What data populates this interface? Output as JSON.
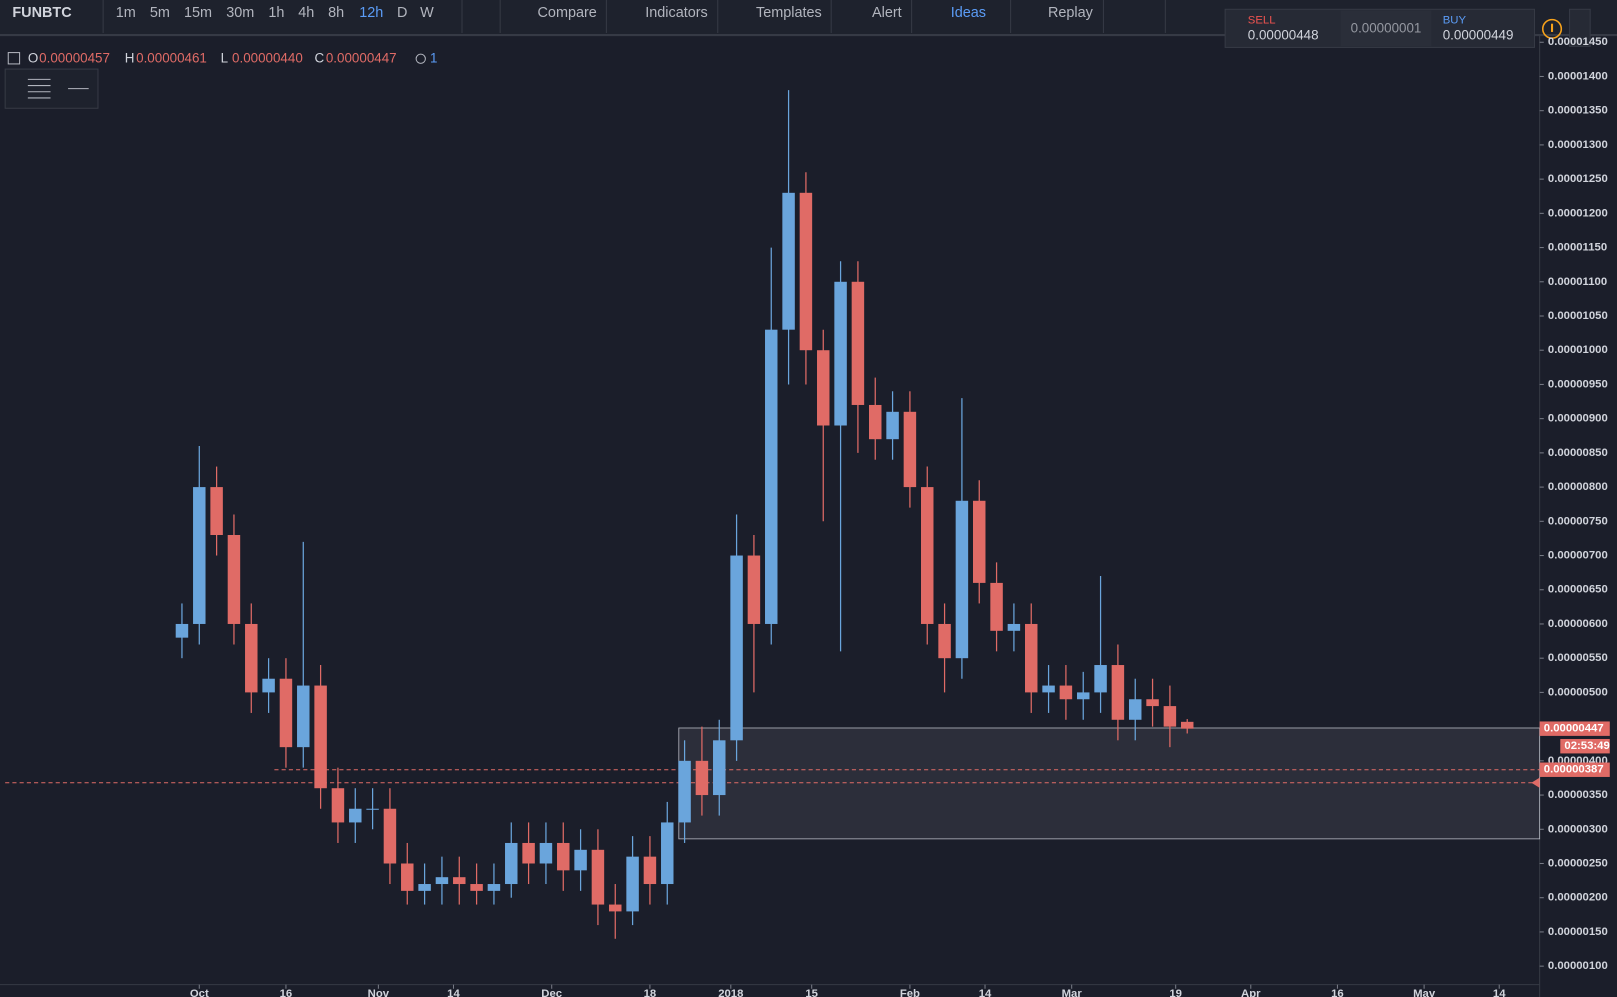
{
  "toolbar": {
    "symbol": "FUNBTC",
    "intervals": [
      "1m",
      "5m",
      "15m",
      "30m",
      "1h",
      "4h",
      "8h",
      "12h",
      "D",
      "W"
    ],
    "buttons": [
      "Compare",
      "Indicators",
      "Templates",
      "Alert",
      "Ideas",
      "Replay"
    ]
  },
  "trade": {
    "sell_label": "SELL",
    "sell": "0.00000448",
    "spread": "0.00000001",
    "buy_label": "BUY",
    "buy": "0.00000449"
  },
  "ohlc": [
    {
      "label": "O",
      "value": "0.00000457"
    },
    {
      "label": "H",
      "value": "0.00000461"
    },
    {
      "label": "L",
      "value": "0.00000440"
    },
    {
      "label": "C",
      "value": "0.00000447"
    }
  ],
  "alerts": "1",
  "chart_data": {
    "type": "candlestick",
    "up_color": "#6aa5dc",
    "down_color": "#e06b66",
    "x": [
      -3,
      0,
      3,
      6,
      9,
      12,
      15,
      18,
      21,
      24,
      27,
      30,
      33,
      36,
      39,
      42,
      45,
      48,
      51,
      54,
      57,
      60,
      63,
      66,
      69,
      72,
      75,
      78,
      81,
      84,
      87,
      90,
      93,
      96,
      99,
      102,
      105,
      108,
      111,
      114,
      117,
      120,
      123,
      126,
      129,
      132,
      135,
      138,
      141,
      144,
      147,
      150,
      153,
      156,
      159,
      162,
      165,
      168,
      171
    ],
    "open": [
      5.8e-06,
      6e-06,
      8e-06,
      7.3e-06,
      6e-06,
      5e-06,
      5.2e-06,
      4.2e-06,
      5.1e-06,
      3.6e-06,
      3.1e-06,
      3.3e-06,
      3.3e-06,
      2.5e-06,
      2.1e-06,
      2.2e-06,
      2.3e-06,
      2.2e-06,
      2.1e-06,
      2.2e-06,
      2.8e-06,
      2.5e-06,
      2.8e-06,
      2.4e-06,
      2.7e-06,
      1.9e-06,
      1.8e-06,
      2.6e-06,
      2.2e-06,
      3.1e-06,
      4e-06,
      3.5e-06,
      4.3e-06,
      7e-06,
      6e-06,
      1.03e-05,
      1.23e-05,
      1e-05,
      8.9e-06,
      1.1e-05,
      9.2e-06,
      8.7e-06,
      9.1e-06,
      8e-06,
      6e-06,
      5.5e-06,
      7.8e-06,
      6.6e-06,
      5.9e-06,
      6e-06,
      5e-06,
      5.1e-06,
      4.9e-06,
      5e-06,
      5.4e-06,
      4.6e-06,
      4.9e-06,
      4.8e-06,
      4.57e-06
    ],
    "high": [
      6.3e-06,
      8.6e-06,
      8.3e-06,
      7.6e-06,
      6.3e-06,
      5.5e-06,
      5.5e-06,
      7.2e-06,
      5.4e-06,
      3.9e-06,
      3.6e-06,
      3.6e-06,
      3.6e-06,
      2.8e-06,
      2.5e-06,
      2.6e-06,
      2.6e-06,
      2.5e-06,
      2.5e-06,
      3.1e-06,
      3.1e-06,
      3.1e-06,
      3.1e-06,
      3e-06,
      3e-06,
      2.2e-06,
      2.9e-06,
      2.9e-06,
      3.4e-06,
      4.3e-06,
      4.5e-06,
      4.6e-06,
      7.6e-06,
      7.3e-06,
      1.15e-05,
      1.38e-05,
      1.26e-05,
      1.03e-05,
      1.13e-05,
      1.13e-05,
      9.6e-06,
      9.4e-06,
      9.4e-06,
      8.3e-06,
      6.3e-06,
      9.3e-06,
      8.1e-06,
      6.9e-06,
      6.3e-06,
      6.3e-06,
      5.4e-06,
      5.4e-06,
      5.3e-06,
      6.7e-06,
      5.7e-06,
      5.2e-06,
      5.2e-06,
      5.1e-06,
      4.61e-06
    ],
    "low": [
      5.5e-06,
      5.7e-06,
      7e-06,
      5.7e-06,
      4.7e-06,
      4.7e-06,
      3.9e-06,
      3.9e-06,
      3.3e-06,
      2.8e-06,
      2.8e-06,
      3e-06,
      2.2e-06,
      1.9e-06,
      1.9e-06,
      1.9e-06,
      1.9e-06,
      1.9e-06,
      1.9e-06,
      2e-06,
      2.2e-06,
      2.2e-06,
      2.1e-06,
      2.1e-06,
      1.6e-06,
      1.4e-06,
      1.6e-06,
      1.9e-06,
      1.9e-06,
      2.8e-06,
      3.2e-06,
      3.2e-06,
      4e-06,
      5e-06,
      5.7e-06,
      9.5e-06,
      9.5e-06,
      7.5e-06,
      5.6e-06,
      8.5e-06,
      8.4e-06,
      8.4e-06,
      7.7e-06,
      5.7e-06,
      5e-06,
      5.2e-06,
      6.3e-06,
      5.6e-06,
      5.6e-06,
      4.7e-06,
      4.7e-06,
      4.6e-06,
      4.6e-06,
      4.7e-06,
      4.3e-06,
      4.3e-06,
      4.5e-06,
      4.2e-06,
      4.4e-06
    ],
    "close": [
      6e-06,
      8e-06,
      7.3e-06,
      6e-06,
      5e-06,
      5.2e-06,
      4.2e-06,
      5.1e-06,
      3.6e-06,
      3.1e-06,
      3.3e-06,
      3.3e-06,
      2.5e-06,
      2.1e-06,
      2.2e-06,
      2.3e-06,
      2.2e-06,
      2.1e-06,
      2.2e-06,
      2.8e-06,
      2.5e-06,
      2.8e-06,
      2.4e-06,
      2.7e-06,
      1.9e-06,
      1.8e-06,
      2.6e-06,
      2.2e-06,
      3.1e-06,
      4e-06,
      3.5e-06,
      4.3e-06,
      7e-06,
      6e-06,
      1.03e-05,
      1.23e-05,
      1e-05,
      8.9e-06,
      1.1e-05,
      9.2e-06,
      8.7e-06,
      9.1e-06,
      8e-06,
      6e-06,
      5.5e-06,
      7.8e-06,
      6.6e-06,
      5.9e-06,
      6e-06,
      5e-06,
      5.1e-06,
      4.9e-06,
      5e-06,
      5.4e-06,
      4.6e-06,
      4.9e-06,
      4.8e-06,
      4.5e-06,
      4.47e-06
    ],
    "xlim": [
      -33.6,
      232
    ],
    "ylim": [
      7.3e-07,
      1.456e-05
    ],
    "xticks": [
      {
        "value": 0,
        "label": "Oct"
      },
      {
        "value": 15,
        "label": "16"
      },
      {
        "value": 31,
        "label": "Nov"
      },
      {
        "value": 44,
        "label": "14"
      },
      {
        "value": 61,
        "label": "Dec"
      },
      {
        "value": 78,
        "label": "18"
      },
      {
        "value": 92,
        "label": "2018"
      },
      {
        "value": 106,
        "label": "15"
      },
      {
        "value": 123,
        "label": "Feb"
      },
      {
        "value": 136,
        "label": "14"
      },
      {
        "value": 151,
        "label": "Mar"
      },
      {
        "value": 169,
        "label": "19"
      },
      {
        "value": 182,
        "label": "Apr"
      },
      {
        "value": 197,
        "label": "16"
      },
      {
        "value": 212,
        "label": "May"
      },
      {
        "value": 225,
        "label": "14"
      }
    ],
    "yticks": [
      {
        "value": 1e-06,
        "label": "0.00000100"
      },
      {
        "value": 1.5e-06,
        "label": "0.00000150"
      },
      {
        "value": 2e-06,
        "label": "0.00000200"
      },
      {
        "value": 2.5e-06,
        "label": "0.00000250"
      },
      {
        "value": 3e-06,
        "label": "0.00000300"
      },
      {
        "value": 3.5e-06,
        "label": "0.00000350"
      },
      {
        "value": 4e-06,
        "label": "0.00000400"
      },
      {
        "value": 4.5e-06,
        "label": "0.00000450"
      },
      {
        "value": 5e-06,
        "label": "0.00000500"
      },
      {
        "value": 5.5e-06,
        "label": "0.00000550"
      },
      {
        "value": 6e-06,
        "label": "0.00000600"
      },
      {
        "value": 6.5e-06,
        "label": "0.00000650"
      },
      {
        "value": 7e-06,
        "label": "0.00000700"
      },
      {
        "value": 7.5e-06,
        "label": "0.00000750"
      },
      {
        "value": 8e-06,
        "label": "0.00000800"
      },
      {
        "value": 8.5e-06,
        "label": "0.00000850"
      },
      {
        "value": 9e-06,
        "label": "0.00000900"
      },
      {
        "value": 9.5e-06,
        "label": "0.00000950"
      },
      {
        "value": 1e-05,
        "label": "0.00001000"
      },
      {
        "value": 1.05e-05,
        "label": "0.00001050"
      },
      {
        "value": 1.1e-05,
        "label": "0.00001100"
      },
      {
        "value": 1.15e-05,
        "label": "0.00001150"
      },
      {
        "value": 1.2e-05,
        "label": "0.00001200"
      },
      {
        "value": 1.25e-05,
        "label": "0.00001250"
      },
      {
        "value": 1.3e-05,
        "label": "0.00001300"
      },
      {
        "value": 1.35e-05,
        "label": "0.00001350"
      },
      {
        "value": 1.4e-05,
        "label": "0.00001400"
      },
      {
        "value": 1.45e-05,
        "label": "0.00001450"
      }
    ],
    "grid": false,
    "zone": {
      "x0": 83,
      "top": 4.48e-06,
      "bottom": 2.86e-06
    },
    "alert_line": {
      "x0": 13,
      "value": 3.87e-06,
      "label": "0.00000387"
    },
    "dashed_line": 3.68e-06,
    "last_price": {
      "value": 4.47e-06,
      "label": "0.00000447"
    },
    "countdown": "02:53:49"
  }
}
